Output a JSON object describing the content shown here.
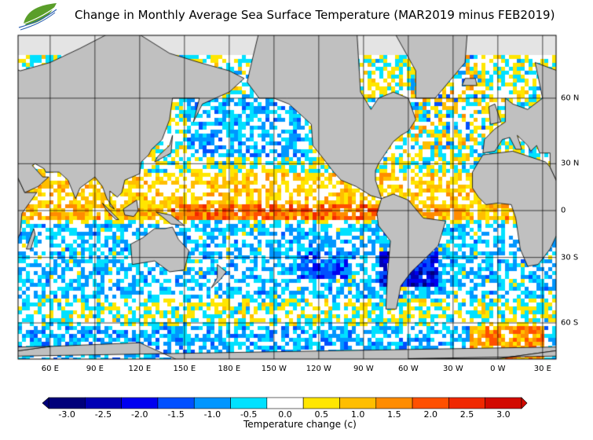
{
  "title": "Change in Monthly Average Sea Surface Temperature (MAR2019 minus FEB2019)",
  "logo": {
    "text": "logo",
    "icon": "leaf-logo-icon"
  },
  "map": {
    "longitude_labels": [
      "60 E",
      "90 E",
      "120 E",
      "150 E",
      "180 E",
      "150 W",
      "120 W",
      "90 W",
      "60 W",
      "30 W",
      "0 W",
      "30 E"
    ],
    "latitude_labels": [
      "60 N",
      "30 N",
      "0",
      "30 S",
      "60 S"
    ],
    "land_color": "#c0c0c0",
    "ice_color": "#e4e4e4"
  },
  "colorbar": {
    "label": "Temperature change  (c)",
    "ticks": [
      "-3.0",
      "-2.5",
      "-2.0",
      "-1.5",
      "-1.0",
      "-0.5",
      "0.0",
      "0.5",
      "1.0",
      "1.5",
      "2.0",
      "2.5",
      "3.0"
    ],
    "colors": [
      "#00007a",
      "#0000b4",
      "#0000f0",
      "#0050ff",
      "#0096ff",
      "#00e1ff",
      "#ffffff",
      "#ffe600",
      "#ffbe00",
      "#ff8c00",
      "#ff5000",
      "#f02800",
      "#d20a00"
    ]
  }
}
